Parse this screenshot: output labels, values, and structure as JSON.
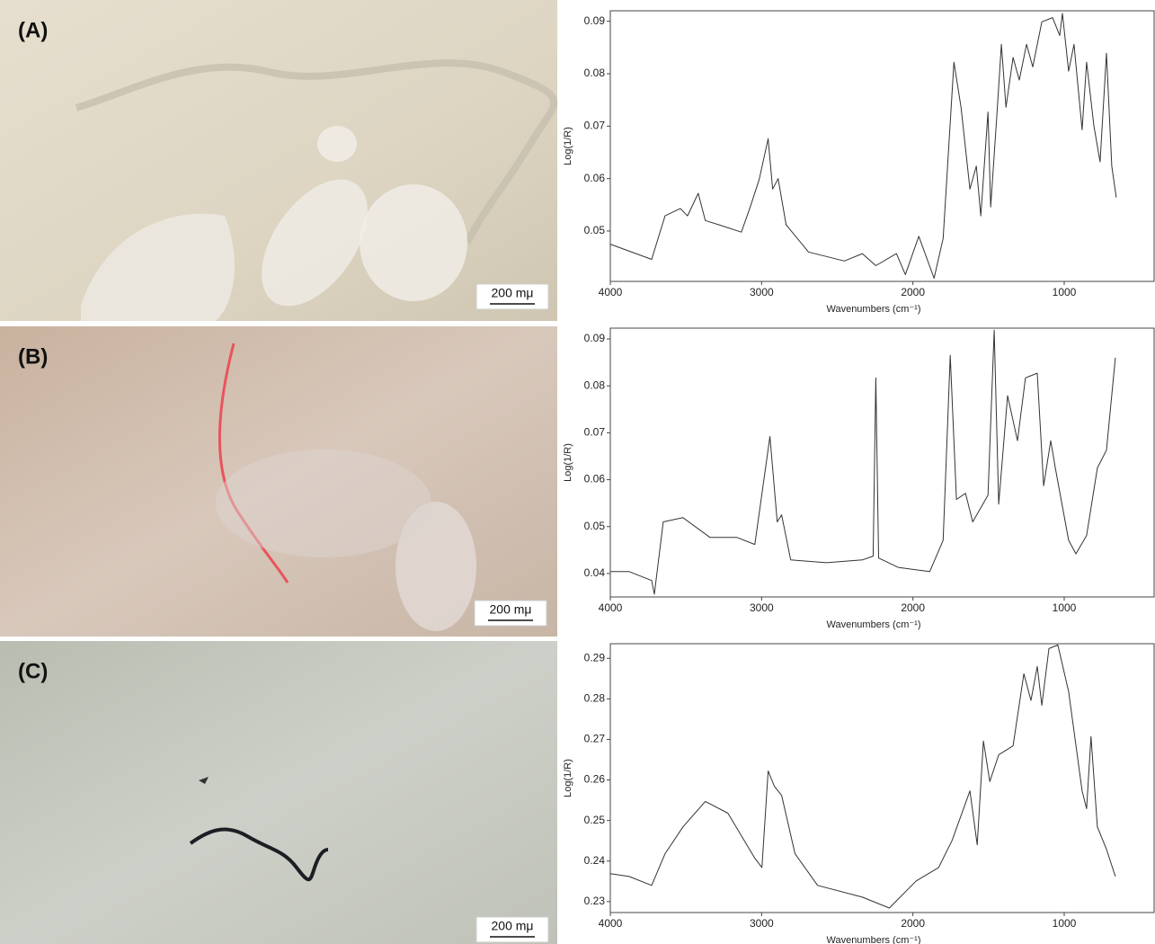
{
  "chart_data": [
    {
      "type": "line",
      "panel_label": "(A)",
      "scale_bar": "200 mμ",
      "x_label": "Wavenumbers (cm⁻¹)",
      "y_label": "Log(1/R)",
      "color": "#333333",
      "xlim": [
        4000,
        400
      ],
      "xticks": [
        4000,
        3000,
        2000,
        1000
      ],
      "ylim": [
        0.0404,
        0.092
      ],
      "yticks": [
        0.05,
        0.06,
        0.07,
        0.08,
        0.09
      ],
      "x": [
        4000,
        3727,
        3638,
        3538,
        3490,
        3419,
        3372,
        3283,
        3134,
        3075,
        3016,
        2957,
        2927,
        2891,
        2838,
        2690,
        2453,
        2334,
        2245,
        2109,
        2050,
        1961,
        1860,
        1800,
        1729,
        1682,
        1623,
        1581,
        1551,
        1504,
        1486,
        1444,
        1415,
        1385,
        1338,
        1297,
        1249,
        1208,
        1148,
        1077,
        1030,
        1012,
        971,
        935,
        882,
        852,
        804,
        763,
        721,
        686,
        656
      ],
      "values": [
        0.0475,
        0.0446,
        0.0529,
        0.0543,
        0.0529,
        0.0572,
        0.052,
        0.0512,
        0.0498,
        0.0546,
        0.0598,
        0.0676,
        0.058,
        0.06,
        0.0512,
        0.046,
        0.0443,
        0.0457,
        0.0434,
        0.0457,
        0.0417,
        0.049,
        0.041,
        0.0486,
        0.0822,
        0.0736,
        0.058,
        0.0624,
        0.0529,
        0.0727,
        0.0546,
        0.0727,
        0.0856,
        0.0736,
        0.0831,
        0.0788,
        0.0856,
        0.0813,
        0.0899,
        0.0907,
        0.0873,
        0.0915,
        0.0805,
        0.0856,
        0.0693,
        0.0822,
        0.0701,
        0.0632,
        0.0839,
        0.0624,
        0.0564
      ]
    },
    {
      "type": "line",
      "panel_label": "(B)",
      "scale_bar": "200 mμ",
      "x_label": "Wavenumbers (cm⁻¹)",
      "y_label": "Log(1/R)",
      "color": "#333333",
      "xlim": [
        4000,
        400
      ],
      "xticks": [
        4000,
        3000,
        2000,
        1000
      ],
      "ylim": [
        0.035,
        0.0923
      ],
      "yticks": [
        0.04,
        0.05,
        0.06,
        0.07,
        0.08,
        0.09
      ],
      "x": [
        4000,
        3875,
        3727,
        3709,
        3650,
        3520,
        3342,
        3164,
        3045,
        2945,
        2897,
        2868,
        2808,
        2571,
        2334,
        2263,
        2245,
        2227,
        2097,
        1889,
        1800,
        1753,
        1712,
        1652,
        1605,
        1504,
        1463,
        1433,
        1374,
        1309,
        1256,
        1178,
        1136,
        1089,
        1059,
        971,
        923,
        852,
        781,
        721,
        662
      ],
      "values": [
        0.0404,
        0.0404,
        0.0385,
        0.0356,
        0.051,
        0.0519,
        0.0477,
        0.0477,
        0.0462,
        0.0692,
        0.051,
        0.0525,
        0.0429,
        0.0423,
        0.0429,
        0.0437,
        0.0817,
        0.0433,
        0.0413,
        0.0404,
        0.0471,
        0.0865,
        0.0558,
        0.0571,
        0.051,
        0.0567,
        0.0919,
        0.0548,
        0.0779,
        0.0683,
        0.0817,
        0.0827,
        0.0587,
        0.0683,
        0.0625,
        0.0471,
        0.0442,
        0.0481,
        0.0625,
        0.0663,
        0.086
      ]
    },
    {
      "type": "line",
      "panel_label": "(C)",
      "scale_bar": "200 mμ",
      "x_label": "Wavenumbers (cm⁻¹)",
      "y_label": "Log(1/R)",
      "color": "#333333",
      "xlim": [
        4000,
        400
      ],
      "xticks": [
        4000,
        3000,
        2000,
        1000
      ],
      "ylim": [
        0.2273,
        0.2936
      ],
      "yticks": [
        0.23,
        0.24,
        0.25,
        0.26,
        0.27,
        0.28,
        0.29
      ],
      "x": [
        4000,
        3875,
        3727,
        3638,
        3520,
        3372,
        3223,
        3045,
        2998,
        2957,
        2915,
        2868,
        2779,
        2630,
        2334,
        2156,
        1978,
        1830,
        1741,
        1623,
        1575,
        1534,
        1492,
        1433,
        1338,
        1267,
        1220,
        1178,
        1148,
        1101,
        1042,
        971,
        882,
        852,
        823,
        781,
        721,
        662
      ],
      "values": [
        0.2369,
        0.2362,
        0.234,
        0.2418,
        0.2484,
        0.2547,
        0.2518,
        0.2407,
        0.2384,
        0.2622,
        0.2584,
        0.2562,
        0.2418,
        0.234,
        0.2311,
        0.2284,
        0.2351,
        0.2384,
        0.2451,
        0.2573,
        0.244,
        0.2696,
        0.2596,
        0.2662,
        0.2684,
        0.2862,
        0.2796,
        0.288,
        0.2784,
        0.2924,
        0.2933,
        0.2818,
        0.2573,
        0.2529,
        0.2707,
        0.2484,
        0.2429,
        0.2362
      ]
    }
  ]
}
